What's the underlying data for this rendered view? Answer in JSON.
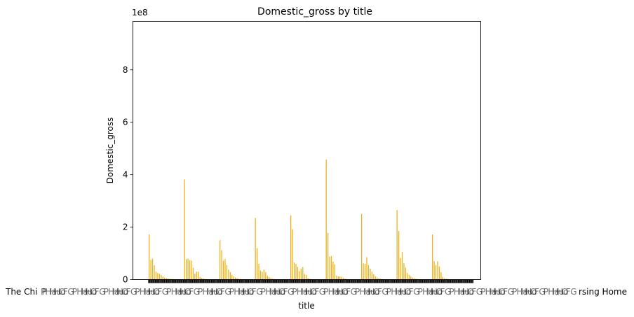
{
  "chart_data": {
    "type": "bar",
    "title": "Domestic_gross by title",
    "xlabel": "title",
    "ylabel": "Domestic_gross",
    "y_multiplier_label": "1e8",
    "ylim": [
      0,
      9.85
    ],
    "y_ticks": [
      0,
      2,
      4,
      6,
      8
    ],
    "y_tick_labels": [
      "0",
      "2",
      "4",
      "6",
      "8"
    ],
    "bar_color": "#f0b21d",
    "x_tick_color": "#000000",
    "grid": false,
    "legend": "none",
    "x_tick_labels_visible": [
      "The Chi",
      "P",
      "Ha",
      "Hu",
      "Ho",
      "C",
      "F",
      "G",
      "rsing Home"
    ],
    "groups": [
      {
        "values": [
          1.72,
          0.75,
          0.8,
          0.55,
          0.3,
          0.25,
          0.22,
          0.18,
          0.12,
          0.08,
          0.05,
          0.04,
          0.03,
          0.02,
          0.02,
          0.01
        ]
      },
      {
        "values": [
          3.82,
          0.78,
          0.8,
          0.74,
          0.72,
          0.45,
          0.22,
          0.3,
          0.3,
          0.1,
          0.06,
          0.04,
          0.02,
          0.01
        ]
      },
      {
        "values": [
          1.5,
          1.12,
          0.72,
          0.78,
          0.55,
          0.38,
          0.28,
          0.18,
          0.12,
          0.08,
          0.05,
          0.03,
          0.02,
          0.01
        ]
      },
      {
        "values": [
          2.35,
          1.2,
          0.6,
          0.35,
          0.3,
          0.38,
          0.28,
          0.15,
          0.1,
          0.06,
          0.03,
          0.02,
          0.01
        ]
      },
      {
        "values": [
          2.45,
          1.92,
          0.65,
          0.6,
          0.48,
          0.32,
          0.42,
          0.48,
          0.22,
          0.18,
          0.05,
          0.03,
          0.02,
          0.01
        ]
      },
      {
        "values": [
          4.58,
          1.78,
          0.88,
          0.9,
          0.68,
          0.58,
          0.15,
          0.12,
          0.12,
          0.1,
          0.06,
          0.03,
          0.02,
          0.01
        ]
      },
      {
        "values": [
          2.5,
          0.62,
          0.6,
          0.85,
          0.55,
          0.42,
          0.3,
          0.2,
          0.12,
          0.08,
          0.05,
          0.03,
          0.02,
          0.01
        ]
      },
      {
        "values": [
          2.65,
          1.85,
          0.82,
          1.05,
          0.62,
          0.45,
          0.25,
          0.18,
          0.12,
          0.08,
          0.05,
          0.03,
          0.02,
          0.01
        ]
      },
      {
        "values": [
          1.72,
          0.7,
          0.55,
          0.7,
          0.5,
          0.28,
          0.1,
          0.05,
          0.03,
          0.02
        ]
      }
    ]
  }
}
